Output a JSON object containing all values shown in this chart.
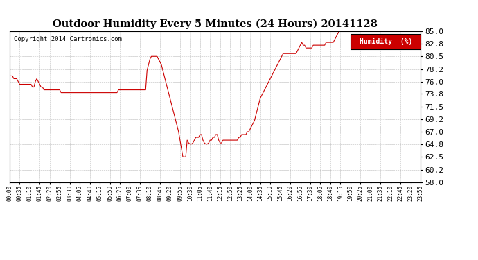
{
  "title": "Outdoor Humidity Every 5 Minutes (24 Hours) 20141128",
  "copyright": "Copyright 2014 Cartronics.com",
  "legend_label": "Humidity  (%)",
  "background_color": "#ffffff",
  "plot_bg_color": "#ffffff",
  "line_color": "#cc0000",
  "grid_color": "#aaaaaa",
  "ylim": [
    58.0,
    85.0
  ],
  "yticks": [
    58.0,
    60.2,
    62.5,
    64.8,
    67.0,
    69.2,
    71.5,
    73.8,
    76.0,
    78.2,
    80.5,
    82.8,
    85.0
  ],
  "legend_bg": "#cc0000",
  "legend_text_color": "#ffffff",
  "humidity_data": [
    77.0,
    77.0,
    77.0,
    76.5,
    76.5,
    76.5,
    76.0,
    75.5,
    75.5,
    75.5,
    75.5,
    75.5,
    75.5,
    75.5,
    75.5,
    75.5,
    75.0,
    75.0,
    76.0,
    76.5,
    76.0,
    75.5,
    75.0,
    75.0,
    74.5,
    74.5,
    74.5,
    74.5,
    74.5,
    74.5,
    74.5,
    74.5,
    74.5,
    74.5,
    74.5,
    74.5,
    74.0,
    74.0,
    74.0,
    74.0,
    74.0,
    74.0,
    74.0,
    74.0,
    74.0,
    74.0,
    74.0,
    74.0,
    74.0,
    74.0,
    74.0,
    74.0,
    74.0,
    74.0,
    74.0,
    74.0,
    74.0,
    74.0,
    74.0,
    74.0,
    74.0,
    74.0,
    74.0,
    74.0,
    74.0,
    74.0,
    74.0,
    74.0,
    74.0,
    74.0,
    74.0,
    74.0,
    74.0,
    74.0,
    74.0,
    74.0,
    74.5,
    74.5,
    74.5,
    74.5,
    74.5,
    74.5,
    74.5,
    74.5,
    74.5,
    74.5,
    74.5,
    74.5,
    74.5,
    74.5,
    74.5,
    74.5,
    74.5,
    74.5,
    74.5,
    74.5,
    78.0,
    79.0,
    80.0,
    80.5,
    80.5,
    80.5,
    80.5,
    80.5,
    80.0,
    79.5,
    79.0,
    78.0,
    77.0,
    76.0,
    75.0,
    74.0,
    73.0,
    72.0,
    71.0,
    70.0,
    69.0,
    68.0,
    67.0,
    65.5,
    64.0,
    62.5,
    62.5,
    62.5,
    65.5,
    65.0,
    64.8,
    64.8,
    65.0,
    65.5,
    66.0,
    66.0,
    66.0,
    66.5,
    66.5,
    65.5,
    65.0,
    64.8,
    64.8,
    65.0,
    65.5,
    65.5,
    66.0,
    66.0,
    66.5,
    66.5,
    65.5,
    65.0,
    65.0,
    65.5,
    65.5,
    65.5,
    65.5,
    65.5,
    65.5,
    65.5,
    65.5,
    65.5,
    65.5,
    65.5,
    66.0,
    66.0,
    66.5,
    66.5,
    66.5,
    66.5,
    67.0,
    67.0,
    67.5,
    68.0,
    68.5,
    69.0,
    70.0,
    71.0,
    72.0,
    73.0,
    73.5,
    74.0,
    74.5,
    75.0,
    75.5,
    76.0,
    76.5,
    77.0,
    77.5,
    78.0,
    78.5,
    79.0,
    79.5,
    80.0,
    80.5,
    81.0,
    81.0,
    81.0,
    81.0,
    81.0,
    81.0,
    81.0,
    81.0,
    81.0,
    81.0,
    81.5,
    82.0,
    82.5,
    83.0,
    82.5,
    82.5,
    82.0,
    82.0,
    82.0,
    82.0,
    82.0,
    82.5,
    82.5,
    82.5,
    82.5,
    82.5,
    82.5,
    82.5,
    82.5,
    82.5,
    83.0,
    83.0,
    83.0,
    83.0,
    83.0,
    83.0,
    83.5,
    84.0,
    84.5,
    85.0,
    85.0,
    85.0,
    85.0,
    85.0,
    85.0,
    85.0,
    85.0,
    85.0,
    85.0,
    85.0,
    85.0,
    85.0,
    85.0,
    85.0,
    85.0,
    85.0,
    85.0,
    85.0,
    85.0,
    85.0,
    85.0,
    85.0,
    85.0,
    85.0,
    85.0,
    85.0,
    85.0,
    85.0,
    85.0,
    85.0,
    85.0,
    85.0,
    85.0,
    85.0,
    85.0,
    85.0,
    85.0,
    85.0,
    85.0,
    85.0,
    85.0,
    85.0,
    85.0,
    85.0,
    85.0,
    85.0,
    85.0,
    85.0,
    85.0,
    85.0,
    85.0,
    85.0,
    85.0,
    85.0,
    85.0,
    85.0,
    85.0
  ],
  "xtick_labels": [
    "00:00",
    "00:35",
    "01:10",
    "01:45",
    "02:20",
    "02:55",
    "03:30",
    "04:05",
    "04:40",
    "05:15",
    "05:50",
    "06:25",
    "07:00",
    "07:35",
    "08:10",
    "08:45",
    "09:20",
    "09:55",
    "10:30",
    "11:05",
    "11:40",
    "12:15",
    "12:50",
    "13:25",
    "14:00",
    "14:35",
    "15:10",
    "15:45",
    "16:20",
    "16:55",
    "17:30",
    "18:05",
    "18:40",
    "19:15",
    "19:50",
    "20:25",
    "21:00",
    "21:35",
    "22:10",
    "22:45",
    "23:20",
    "23:55"
  ]
}
